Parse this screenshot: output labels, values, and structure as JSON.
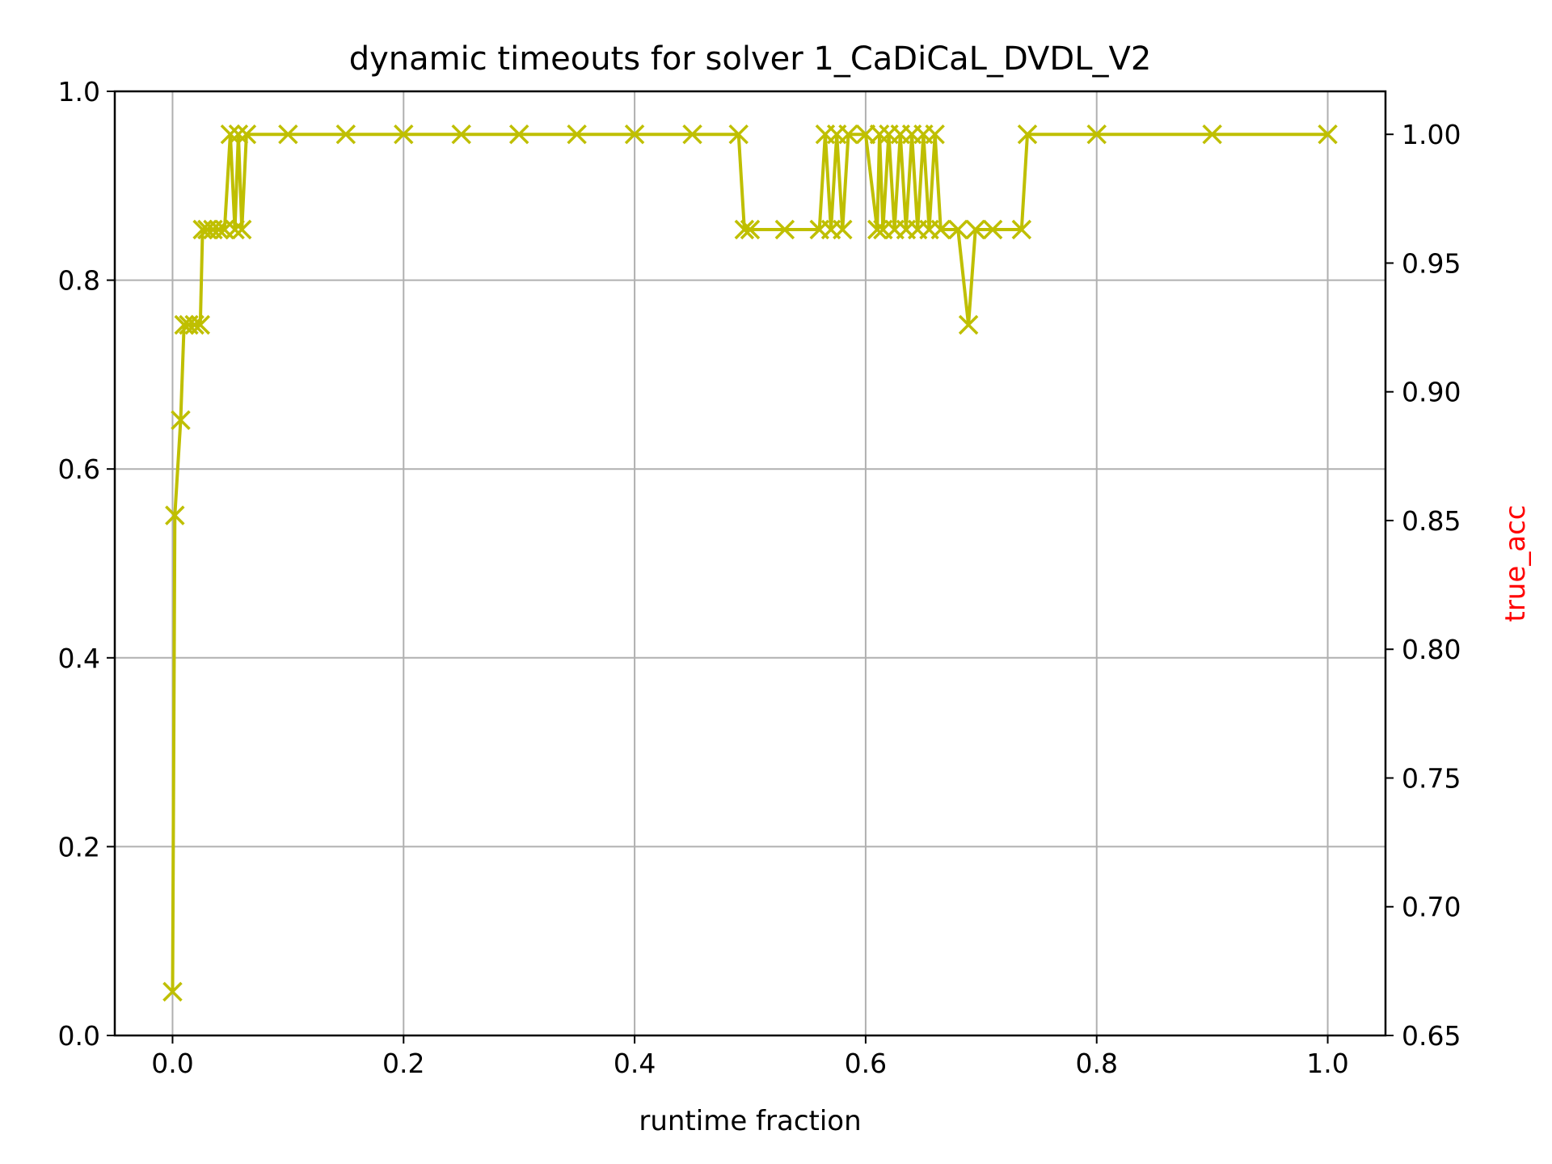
{
  "chart_data": {
    "type": "line",
    "title": "dynamic timeouts for solver 1_CaDiCaL_DVDL_V2",
    "xlabel": "runtime fraction",
    "ylabel": "",
    "y2label": "true_acc",
    "xlim": [
      -0.05,
      1.05
    ],
    "ylim": [
      0.0,
      1.0
    ],
    "y2lim": [
      0.65,
      1.0167
    ],
    "xticks": [
      "0.0",
      "0.2",
      "0.4",
      "0.6",
      "0.8",
      "1.0"
    ],
    "yticks": [
      "0.0",
      "0.2",
      "0.4",
      "0.6",
      "0.8",
      "1.0"
    ],
    "y2ticks": [
      "0.65",
      "0.70",
      "0.75",
      "0.80",
      "0.85",
      "0.90",
      "0.95",
      "1.00"
    ],
    "grid": true,
    "legend": "none",
    "colors": {
      "series": "#bfbf00",
      "y2label": "#ff0000",
      "grid": "#b0b0b0",
      "axes": "#000000"
    },
    "series": [
      {
        "axis": "right",
        "marker": "x",
        "x": [
          0.0,
          0.002,
          0.007,
          0.01,
          0.014,
          0.019,
          0.024,
          0.026,
          0.03,
          0.035,
          0.04,
          0.045,
          0.05,
          0.054,
          0.057,
          0.06,
          0.064,
          0.1,
          0.15,
          0.2,
          0.25,
          0.3,
          0.35,
          0.4,
          0.45,
          0.49,
          0.495,
          0.5,
          0.53,
          0.56,
          0.565,
          0.57,
          0.575,
          0.58,
          0.585,
          0.6,
          0.61,
          0.612,
          0.615,
          0.62,
          0.625,
          0.63,
          0.635,
          0.64,
          0.645,
          0.65,
          0.655,
          0.66,
          0.665,
          0.68,
          0.689,
          0.695,
          0.71,
          0.735,
          0.74,
          0.8,
          0.9,
          1.0
        ],
        "y": [
          0.667,
          0.852,
          0.889,
          0.926,
          0.926,
          0.926,
          0.926,
          0.963,
          0.963,
          0.963,
          0.963,
          0.963,
          1.0,
          0.963,
          1.0,
          0.963,
          1.0,
          1.0,
          1.0,
          1.0,
          1.0,
          1.0,
          1.0,
          1.0,
          1.0,
          1.0,
          0.963,
          0.963,
          0.963,
          0.963,
          1.0,
          0.963,
          1.0,
          0.963,
          1.0,
          1.0,
          0.963,
          1.0,
          0.963,
          1.0,
          0.963,
          1.0,
          0.963,
          1.0,
          0.963,
          1.0,
          0.963,
          1.0,
          0.963,
          0.963,
          0.926,
          0.963,
          0.963,
          0.963,
          1.0,
          1.0,
          1.0,
          1.0
        ]
      }
    ]
  }
}
